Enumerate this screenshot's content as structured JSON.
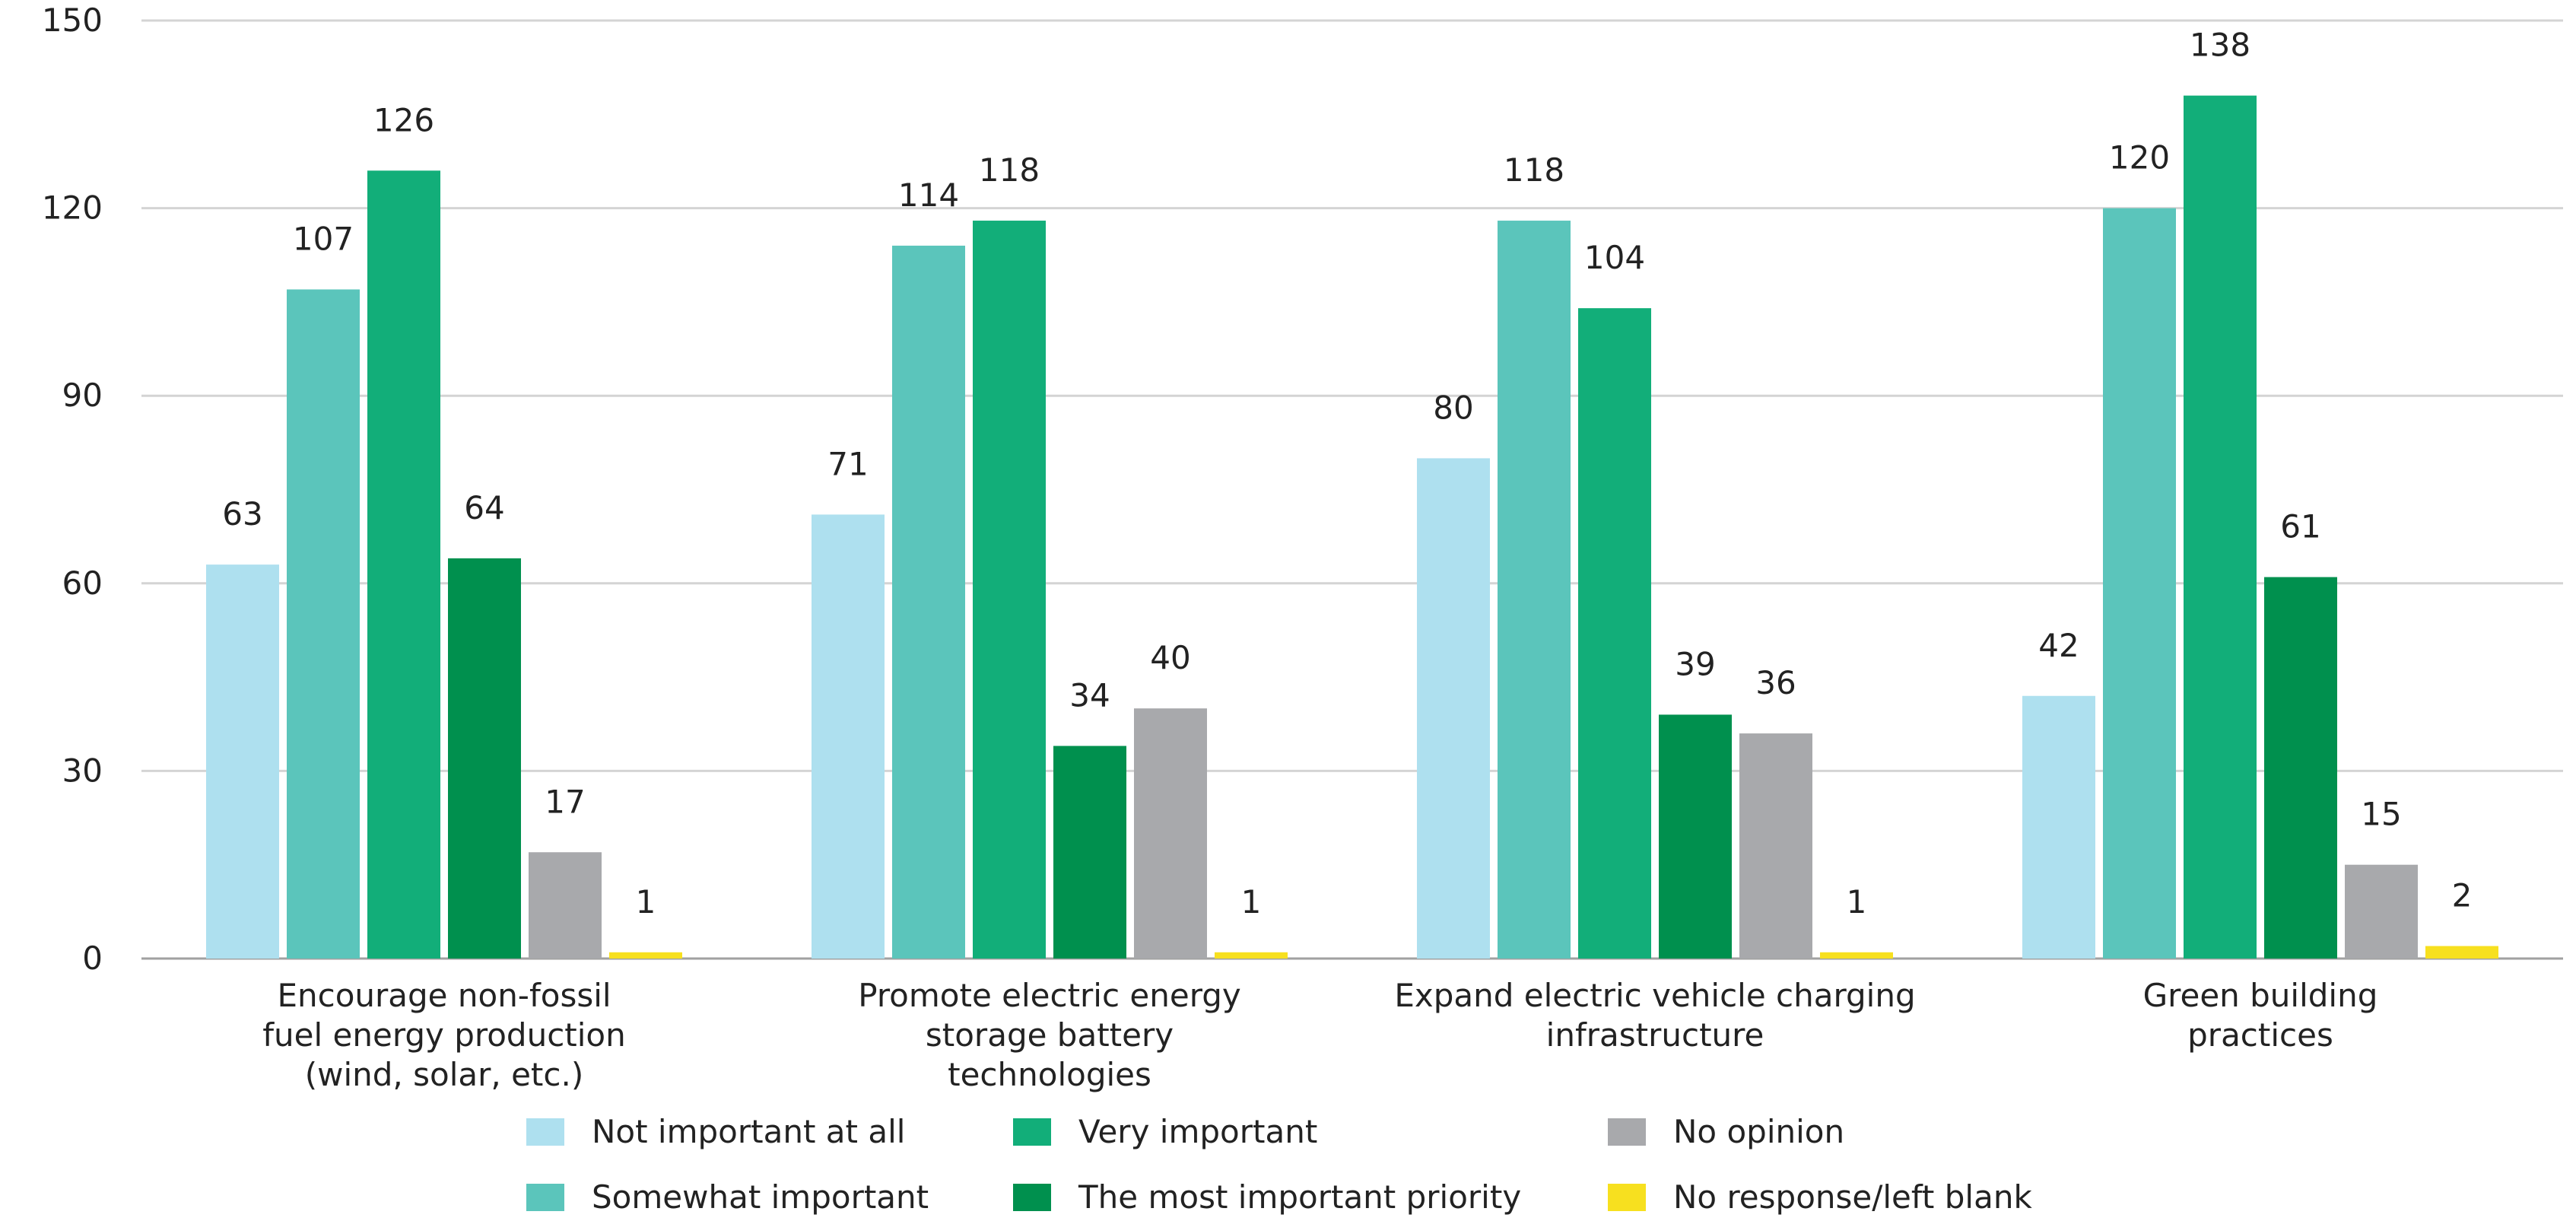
{
  "chart_data": {
    "type": "bar",
    "title": "",
    "xlabel": "",
    "ylabel": "",
    "ylim": [
      0,
      150
    ],
    "yticks": [
      0,
      30,
      60,
      90,
      120,
      150
    ],
    "grid": true,
    "legend_position": "bottom",
    "categories": [
      [
        "Encourage non-fossil",
        "fuel energy production",
        "(wind, solar, etc.)"
      ],
      [
        "Promote electric energy",
        "storage battery",
        "technologies"
      ],
      [
        "Expand electric vehicle charging",
        "infrastructure"
      ],
      [
        "Green building",
        "practices"
      ]
    ],
    "series": [
      {
        "name": "Not important at all",
        "color": "#aee0ef",
        "values": [
          63,
          71,
          80,
          42
        ]
      },
      {
        "name": "Somewhat important",
        "color": "#5bc5bb",
        "values": [
          107,
          114,
          118,
          120
        ]
      },
      {
        "name": "Very important",
        "color": "#12ae79",
        "values": [
          126,
          118,
          104,
          138
        ]
      },
      {
        "name": "The most important priority",
        "color": "#00904e",
        "values": [
          64,
          34,
          39,
          61
        ]
      },
      {
        "name": "No opinion",
        "color": "#a8a9ac",
        "values": [
          17,
          40,
          36,
          15
        ]
      },
      {
        "name": "No response/left blank",
        "color": "#f7e01f",
        "values": [
          1,
          1,
          1,
          2
        ]
      }
    ],
    "legend_order": [
      0,
      2,
      4,
      1,
      3,
      5
    ]
  }
}
